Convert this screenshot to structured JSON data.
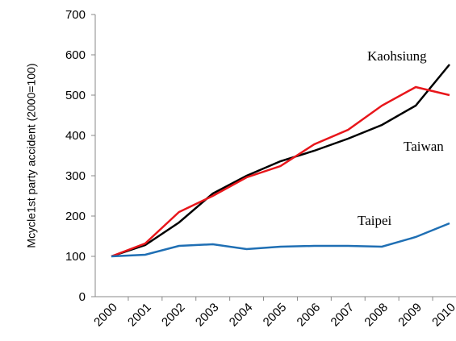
{
  "chart_data": {
    "type": "line",
    "ylabel": "Mcycle1st party accident (2000=100)",
    "categories": [
      "2000",
      "2001",
      "2002",
      "2003",
      "2004",
      "2005",
      "2006",
      "2007",
      "2008",
      "2009",
      "2010"
    ],
    "series": [
      {
        "name": "Kaohsiung",
        "color": "#000000",
        "values": [
          100,
          128,
          184,
          256,
          300,
          336,
          362,
          392,
          426,
          474,
          576
        ]
      },
      {
        "name": "Taiwan",
        "color": "#e8161b",
        "values": [
          100,
          132,
          210,
          250,
          296,
          324,
          378,
          414,
          474,
          520,
          500
        ]
      },
      {
        "name": "Taipei",
        "color": "#1f6fb4",
        "values": [
          100,
          104,
          126,
          130,
          118,
          124,
          126,
          126,
          124,
          148,
          182
        ]
      }
    ],
    "ylim": [
      0,
      700
    ],
    "yticks": [
      0,
      100,
      200,
      300,
      400,
      500,
      600,
      700
    ],
    "grid": false
  }
}
